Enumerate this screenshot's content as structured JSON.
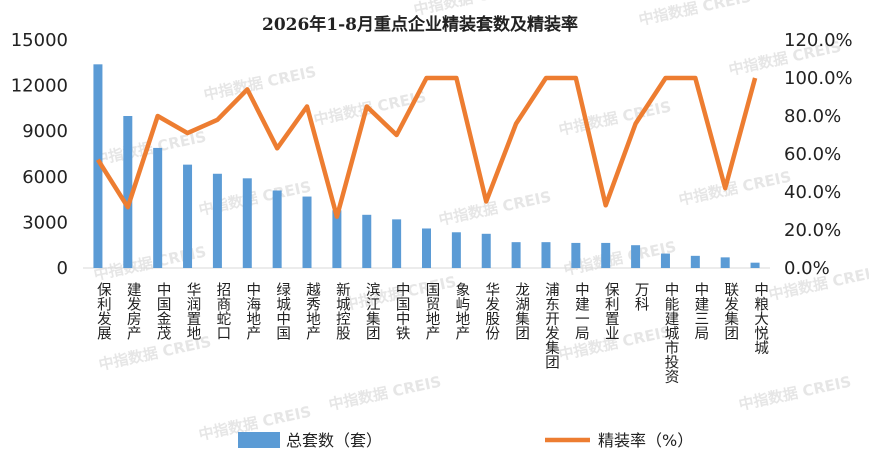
{
  "watermark": "中指数据 CREIS",
  "chart_data": {
    "type": "bar+line",
    "title": "2026年1-8月重点企业精装套数及精装率",
    "categories": [
      "保利发展",
      "建发房产",
      "中国金茂",
      "华润置地",
      "招商蛇口",
      "中海地产",
      "绿城中国",
      "越秀地产",
      "新城控股",
      "滨江集团",
      "中国中铁",
      "国贸地产",
      "象屿地产",
      "华发股份",
      "龙湖集团",
      "浦东开发集团",
      "中建一局",
      "保利置业",
      "万科",
      "中能建城市投资",
      "中建三局",
      "联发集团",
      "中粮大悦城"
    ],
    "left_axis": {
      "min": 0,
      "max": 15000,
      "ticks": [
        "0",
        "3000",
        "6000",
        "9000",
        "12000",
        "15000"
      ]
    },
    "right_axis": {
      "min": 0,
      "max": 120,
      "ticks": [
        "0.0%",
        "20.0%",
        "40.0%",
        "60.0%",
        "80.0%",
        "100.0%",
        "120.0%"
      ]
    },
    "series": [
      {
        "name": "总套数（套）",
        "type": "bar",
        "axis": "left",
        "color": "#5b9bd5",
        "values": [
          13400,
          10000,
          7900,
          6800,
          6200,
          5900,
          5100,
          4700,
          3800,
          3500,
          3200,
          2600,
          2350,
          2250,
          1700,
          1700,
          1650,
          1650,
          1500,
          950,
          800,
          700,
          350
        ]
      },
      {
        "name": "精装率（%）",
        "type": "line",
        "axis": "right",
        "color": "#ed7d31",
        "values": [
          57,
          32,
          80,
          71,
          78,
          94,
          63,
          85,
          27,
          85,
          70,
          100,
          100,
          35,
          76,
          100,
          100,
          33,
          76,
          100,
          100,
          42,
          100
        ]
      }
    ]
  }
}
